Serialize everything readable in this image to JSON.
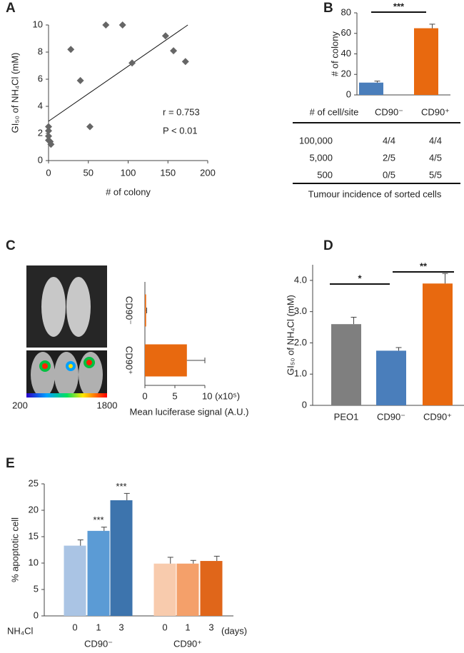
{
  "chart_data": [
    {
      "panel": "A",
      "type": "scatter",
      "x_label": "# of colony",
      "y_label": "GI₅₀ of NH₄Cl (mM)",
      "x": [
        0,
        0,
        0,
        0,
        2,
        3,
        28,
        40,
        52,
        72,
        93,
        105,
        147,
        157,
        172
      ],
      "y": [
        2.5,
        2.2,
        1.8,
        1.5,
        1.4,
        1.2,
        8.2,
        5.9,
        2.5,
        10,
        10,
        7.2,
        9.2,
        8.1,
        7.3
      ],
      "color": "#666666",
      "fit_line": {
        "x": [
          0,
          175
        ],
        "y": [
          2.9,
          10
        ]
      },
      "annotations": [
        "r = 0.753",
        "P < 0.01"
      ],
      "xlim": [
        0,
        200
      ],
      "xticks": [
        0,
        50,
        100,
        150,
        200
      ],
      "ylim": [
        0,
        10
      ],
      "yticks": [
        0,
        2,
        4,
        6,
        8,
        10
      ]
    },
    {
      "panel": "B",
      "type": "bar",
      "y_label": "# of colony",
      "categories": [
        null,
        null
      ],
      "values": [
        12,
        65
      ],
      "errors": [
        1.5,
        4
      ],
      "colors": [
        "#4a7ebb",
        "#e8690f"
      ],
      "ylim": [
        0,
        80
      ],
      "yticks": [
        0,
        20,
        40,
        60,
        80
      ],
      "significance": [
        "***"
      ],
      "table": {
        "header": [
          "# of cell/site",
          "CD90⁻",
          "CD90⁺"
        ],
        "rows": [
          [
            "100,000",
            "4/4",
            "4/4"
          ],
          [
            "5,000",
            "2/5",
            "4/5"
          ],
          [
            "500",
            "0/5",
            "5/5"
          ]
        ],
        "caption": "Tumour incidence of sorted cells"
      }
    },
    {
      "panel": "C",
      "type": "hbar",
      "x_label": "Mean luciferase signal (A.U.)",
      "categories": [
        "CD90⁻",
        "CD90⁺"
      ],
      "values": [
        0.2,
        7
      ],
      "errors": [
        0.1,
        3
      ],
      "color": "#e8690f",
      "xlim": [
        0,
        10
      ],
      "xticks": [
        0,
        5,
        {
          "value": 10,
          "label": "10 (x10⁵)"
        }
      ],
      "colorbar_labels": [
        "200",
        "1800"
      ]
    },
    {
      "panel": "D",
      "type": "bar",
      "y_label": "GI₅₀ of NH₄Cl (mM)",
      "categories": [
        "PEO1",
        "CD90⁻",
        "CD90⁺"
      ],
      "values": [
        2.6,
        1.75,
        3.9
      ],
      "errors": [
        0.22,
        0.1,
        0.32
      ],
      "colors": [
        "#7f7f7f",
        "#4a7ebb",
        "#e8690f"
      ],
      "ylim": [
        0,
        4.5
      ],
      "yticks": [
        0,
        {
          "value": 1,
          "label": "1.0"
        },
        {
          "value": 2,
          "label": "2.0"
        },
        {
          "value": 3,
          "label": "3.0"
        },
        {
          "value": 4,
          "label": "4.0"
        }
      ],
      "significance": [
        "*",
        "**"
      ]
    },
    {
      "panel": "E",
      "type": "bar",
      "y_label": "% apoptotic cell",
      "x_prefix": "NH₄Cl",
      "x_suffix": "(days)",
      "groups": [
        "CD90⁻",
        "CD90⁺"
      ],
      "categories": [
        "0",
        "1",
        "3",
        "0",
        "1",
        "3"
      ],
      "values": [
        13.3,
        16.1,
        21.9,
        9.9,
        9.9,
        10.4
      ],
      "errors": [
        1.1,
        0.7,
        1.3,
        1.2,
        0.6,
        0.9
      ],
      "colors": [
        "#aac4e4",
        "#5b9bd5",
        "#3d74ad",
        "#f8cbad",
        "#f4a06a",
        "#e0661a"
      ],
      "value_annotations": [
        null,
        "***",
        "***",
        null,
        null,
        null
      ],
      "ylim": [
        0,
        25
      ],
      "yticks": [
        0,
        5,
        10,
        15,
        20,
        25
      ]
    }
  ]
}
